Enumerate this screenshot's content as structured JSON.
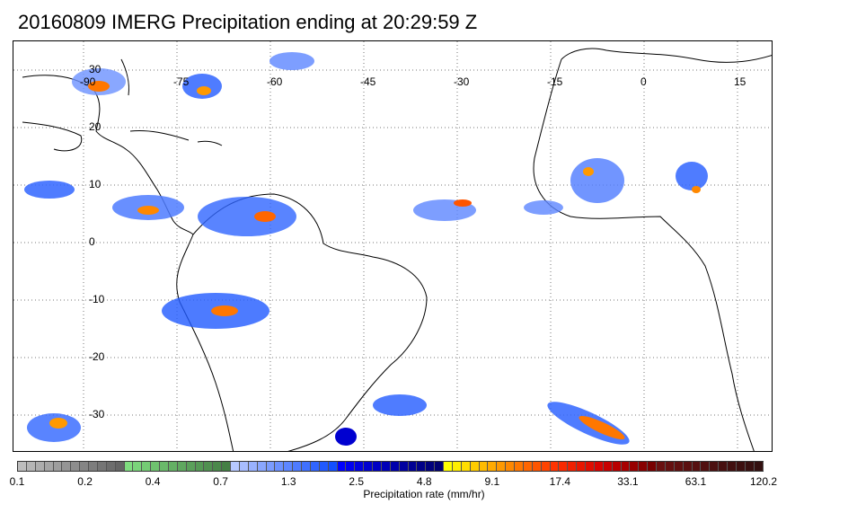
{
  "title": "20160809 IMERG Precipitation ending at 20:29:59 Z",
  "map": {
    "lon_labels": [
      "-90",
      "-75",
      "-60",
      "-45",
      "-30",
      "-15",
      "0",
      "15"
    ],
    "lat_labels": [
      "30",
      "20",
      "10",
      "0",
      "-10",
      "-20",
      "-30"
    ],
    "gridlines": "dotted"
  },
  "colorbar": {
    "title": "Precipitation rate (mm/hr)",
    "tick_labels": [
      "0.1",
      "0.2",
      "0.4",
      "0.7",
      "1.3",
      "2.5",
      "4.8",
      "9.1",
      "17.4",
      "33.1",
      "63.1",
      "120.2"
    ],
    "colors": [
      "#bdbdbd",
      "#b5b5b5",
      "#adadad",
      "#a5a5a5",
      "#9d9d9d",
      "#959595",
      "#8d8d8d",
      "#858585",
      "#7d7d7d",
      "#757575",
      "#6d6d6d",
      "#656565",
      "#7fdd7f",
      "#7ad47a",
      "#74cb74",
      "#6fc26f",
      "#6ab96a",
      "#64b064",
      "#5fa85f",
      "#5aa05a",
      "#559955",
      "#509050",
      "#4a884a",
      "#458045",
      "#b7c8ff",
      "#a8bdff",
      "#99b2ff",
      "#8aa7ff",
      "#7b9cff",
      "#6c91ff",
      "#5d86ff",
      "#4e7bff",
      "#3f70ff",
      "#3065ff",
      "#215aff",
      "#124fff",
      "#0000ff",
      "#0000f0",
      "#0000e0",
      "#0000d0",
      "#0000c4",
      "#0000b8",
      "#0000ac",
      "#0000a0",
      "#000094",
      "#000088",
      "#00007c",
      "#000070",
      "#ffff00",
      "#ffee00",
      "#ffdd00",
      "#ffcc00",
      "#ffbb00",
      "#ffaa00",
      "#ff9900",
      "#ff8800",
      "#ff7700",
      "#ff6600",
      "#ff5500",
      "#ff4400",
      "#ff3300",
      "#f82a00",
      "#f02000",
      "#e81600",
      "#e00c00",
      "#d80200",
      "#c80000",
      "#b80000",
      "#a80000",
      "#980000",
      "#880000",
      "#780000",
      "#6a1010",
      "#651010",
      "#601010",
      "#5b1010",
      "#561010",
      "#511010",
      "#4c1010",
      "#471010",
      "#421010",
      "#3d1010",
      "#381010",
      "#331010"
    ]
  }
}
